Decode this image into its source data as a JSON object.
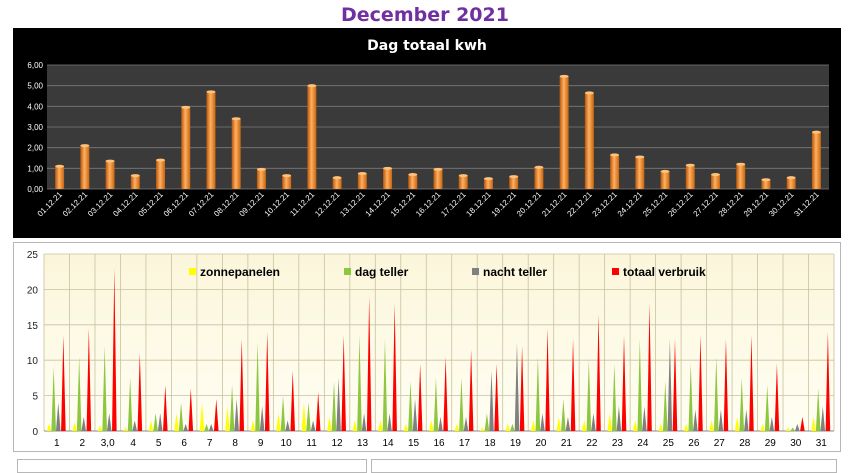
{
  "page": {
    "title": "December 2021"
  },
  "chart_data": [
    {
      "type": "bar",
      "title": "Dag totaal kwh",
      "xlabel": "",
      "ylabel": "",
      "ylim": [
        0,
        6
      ],
      "yticks": [
        "0,00",
        "1,00",
        "2,00",
        "3,00",
        "4,00",
        "5,00",
        "6,00"
      ],
      "grid": true,
      "categories": [
        "01.12.21",
        "02.12.21",
        "03.12.21",
        "04.12.21",
        "05.12.21",
        "06.12.21",
        "07.12.21",
        "08.12.21",
        "09.12.21",
        "10.12.21",
        "11.12.21",
        "12.12.21",
        "13.12.21",
        "14.12.21",
        "15.12.21",
        "16.12.21",
        "17.12.21",
        "18.12.21",
        "19.12.21",
        "20.12.21",
        "21.12.21",
        "22.12.21",
        "23.12.21",
        "24.12.21",
        "25.12.21",
        "26.12.21",
        "27.12.21",
        "28.12.21",
        "29.12.21",
        "30.12.21",
        "31.12.21"
      ],
      "values": [
        1.1,
        2.1,
        1.35,
        0.65,
        1.4,
        3.95,
        4.7,
        3.4,
        0.95,
        0.65,
        5.0,
        0.55,
        0.75,
        1.0,
        0.7,
        0.95,
        0.65,
        0.5,
        0.6,
        1.05,
        5.45,
        4.65,
        1.65,
        1.55,
        0.85,
        1.15,
        0.7,
        1.2,
        0.45,
        0.55,
        2.75
      ],
      "colors": {
        "background": "#000000",
        "plot": "#3a3a3a",
        "bar": "#f0881e",
        "text": "#ffffff"
      }
    },
    {
      "type": "area",
      "title": "",
      "ylim": [
        0,
        25
      ],
      "yticks": [
        "0",
        "5",
        "10",
        "15",
        "20",
        "25"
      ],
      "grid": true,
      "legend_position": "top",
      "categories": [
        "1",
        "2",
        "3,0",
        "4",
        "5",
        "6",
        "7",
        "8",
        "9",
        "10",
        "11",
        "12",
        "13",
        "14",
        "15",
        "16",
        "17",
        "18",
        "19",
        "20",
        "21",
        "22",
        "23",
        "24",
        "25",
        "26",
        "27",
        "28",
        "29",
        "30",
        "31"
      ],
      "series": [
        {
          "name": "zonnepanelen",
          "color": "#ffff00",
          "values": [
            1.0,
            1.2,
            0.8,
            0.5,
            1.5,
            2.5,
            4.0,
            3.5,
            1.5,
            2.5,
            4.0,
            2.0,
            1.5,
            1.5,
            1.0,
            1.5,
            1.0,
            0.5,
            1.0,
            1.5,
            2.0,
            1.5,
            2.5,
            1.5,
            1.0,
            1.0,
            1.5,
            2.0,
            1.0,
            0.5,
            2.0
          ]
        },
        {
          "name": "dag teller",
          "color": "#8dc63f",
          "values": [
            9.0,
            10.5,
            12.0,
            7.5,
            2.5,
            4.0,
            1.0,
            6.5,
            12.5,
            5.0,
            4.0,
            7.0,
            13.5,
            13.0,
            7.0,
            7.5,
            7.5,
            2.5,
            1.0,
            10.5,
            4.5,
            10.0,
            9.5,
            13.0,
            7.0,
            9.5,
            10.5,
            7.5,
            6.5,
            0.5,
            6.0
          ]
        },
        {
          "name": "nacht teller",
          "color": "#808080",
          "values": [
            4.0,
            2.0,
            2.5,
            1.5,
            2.5,
            1.0,
            1.0,
            4.5,
            3.5,
            1.5,
            1.5,
            7.5,
            2.5,
            2.5,
            4.5,
            2.0,
            2.0,
            8.5,
            12.5,
            2.5,
            2.0,
            2.5,
            3.5,
            3.5,
            13.0,
            3.0,
            3.0,
            3.0,
            2.0,
            1.0,
            3.5
          ]
        },
        {
          "name": "totaal verbruik",
          "color": "#ff0000",
          "values": [
            13.5,
            14.5,
            23.0,
            11.0,
            6.5,
            6.0,
            4.5,
            13.0,
            14.0,
            8.5,
            5.5,
            13.5,
            19.0,
            18.0,
            9.5,
            10.5,
            11.5,
            9.5,
            12.0,
            14.5,
            13.0,
            16.5,
            13.5,
            18.0,
            13.0,
            13.5,
            13.0,
            13.5,
            9.5,
            2.0,
            14.0
          ]
        }
      ]
    }
  ]
}
